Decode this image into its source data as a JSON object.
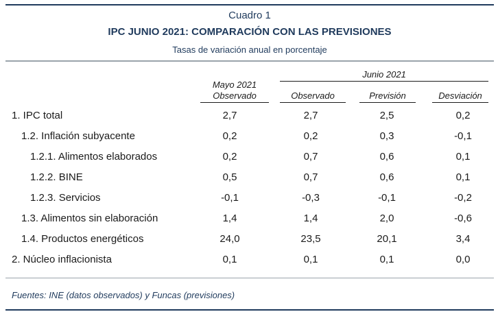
{
  "header": {
    "cuadro": "Cuadro 1",
    "title": "IPC JUNIO 2021: COMPARACIÓN CON LAS PREVISIONES",
    "subtitle": "Tasas de variación anual en porcentaje"
  },
  "columns": {
    "mayo_line1": "Mayo 2021",
    "mayo_line2": "Observado",
    "junio_group": "Junio 2021",
    "observado": "Observado",
    "prevision": "Previsión",
    "desviacion": "Desviación"
  },
  "rows": [
    {
      "label": "1. IPC total",
      "mayo": "2,7",
      "observado": "2,7",
      "prevision": "2,5",
      "desviacion": "0,2"
    },
    {
      "label": "1.2. Inflación subyacente",
      "mayo": "0,2",
      "observado": "0,2",
      "prevision": "0,3",
      "desviacion": "-0,1"
    },
    {
      "label": "1.2.1. Alimentos elaborados",
      "mayo": "0,2",
      "observado": "0,7",
      "prevision": "0,6",
      "desviacion": "0,1"
    },
    {
      "label": "1.2.2. BINE",
      "mayo": "0,5",
      "observado": "0,7",
      "prevision": "0,6",
      "desviacion": "0,1"
    },
    {
      "label": "1.2.3. Servicios",
      "mayo": "-0,1",
      "observado": "-0,3",
      "prevision": "-0,1",
      "desviacion": "-0,2"
    },
    {
      "label": "1.3. Alimentos sin elaboración",
      "mayo": "1,4",
      "observado": "1,4",
      "prevision": "2,0",
      "desviacion": "-0,6"
    },
    {
      "label": "1.4. Productos energéticos",
      "mayo": "24,0",
      "observado": "23,5",
      "prevision": "20,1",
      "desviacion": "3,4"
    },
    {
      "label": "2. Núcleo inflacionista",
      "mayo": "0,1",
      "observado": "0,1",
      "prevision": "0,1",
      "desviacion": "0,0"
    }
  ],
  "footer": "Fuentes: INE (datos observados) y Funcas (previsiones)"
}
